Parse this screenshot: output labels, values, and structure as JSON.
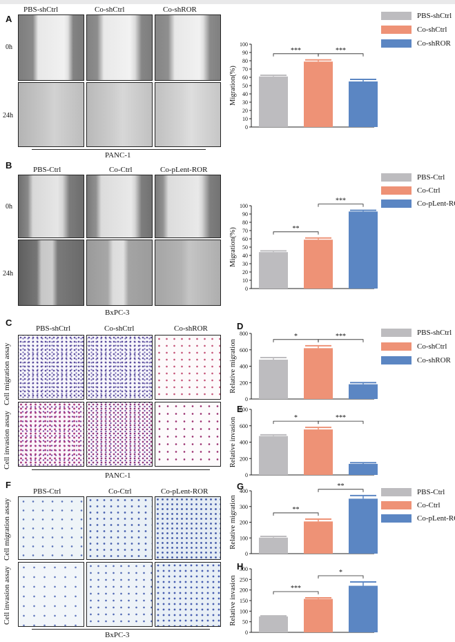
{
  "colors": {
    "gray": "#bdbcbf",
    "salmon": "#ee9276",
    "blue": "#5b86c3"
  },
  "panels": {
    "A": "A",
    "B": "B",
    "C": "C",
    "D": "D",
    "E": "E",
    "F": "F",
    "G": "G",
    "H": "H"
  },
  "panelA": {
    "cols": [
      "PBS-shCtrl",
      "Co-shCtrl",
      "Co-shROR"
    ],
    "rows": [
      "0h",
      "24h"
    ],
    "cell_line": "PANC-1"
  },
  "panelB": {
    "cols": [
      "PBS-Ctrl",
      "Co-Ctrl",
      "Co-pLent-ROR"
    ],
    "rows": [
      "0h",
      "24h"
    ],
    "cell_line": "BxPC-3"
  },
  "panelC": {
    "cols": [
      "PBS-shCtrl",
      "Co-shCtrl",
      "Co-shROR"
    ],
    "rows": [
      "Cell migration assay",
      "Cell invasion assay"
    ],
    "cell_line": "PANC-1"
  },
  "panelF": {
    "cols": [
      "PBS-Ctrl",
      "Co-Ctrl",
      "Co-pLent-ROR"
    ],
    "rows": [
      "Cell migration assay",
      "Cell invasion assay"
    ],
    "cell_line": "BxPC-3"
  },
  "legend1": [
    "PBS-shCtrl",
    "Co-shCtrl",
    "Co-shROR"
  ],
  "legend2": [
    "PBS-Ctrl",
    "Co-Ctrl",
    "Co-pLent-ROR"
  ],
  "legend3": [
    "PBS-shCtrl",
    "Co-shCtrl",
    "Co-shROR"
  ],
  "legend4": [
    "PBS-Ctrl",
    "Co-Ctrl",
    "Co-pLent-ROR"
  ],
  "chart_data": [
    {
      "id": "A",
      "type": "bar",
      "categories": [
        "PBS-shCtrl",
        "Co-shCtrl",
        "Co-shROR"
      ],
      "values": [
        61,
        79,
        55
      ],
      "errors": [
        1.5,
        2,
        2.5
      ],
      "ylabel": "Migration(%)",
      "ylim": [
        0,
        100
      ],
      "yticks": [
        0,
        10,
        20,
        30,
        40,
        50,
        60,
        70,
        80,
        90,
        100
      ],
      "sig": [
        {
          "from": 0,
          "to": 1,
          "label": "***"
        },
        {
          "from": 1,
          "to": 2,
          "label": "***"
        }
      ]
    },
    {
      "id": "B",
      "type": "bar",
      "categories": [
        "PBS-Ctrl",
        "Co-Ctrl",
        "Co-pLent-ROR"
      ],
      "values": [
        44,
        59,
        93
      ],
      "errors": [
        1.5,
        2,
        1.5
      ],
      "ylabel": "Migration(%)",
      "ylim": [
        0,
        100
      ],
      "yticks": [
        0,
        10,
        20,
        30,
        40,
        50,
        60,
        70,
        80,
        90,
        100
      ],
      "sig": [
        {
          "from": 0,
          "to": 1,
          "label": "**"
        },
        {
          "from": 1,
          "to": 2,
          "label": "***"
        }
      ]
    },
    {
      "id": "D",
      "type": "bar",
      "categories": [
        "PBS-shCtrl",
        "Co-shCtrl",
        "Co-shROR"
      ],
      "values": [
        480,
        620,
        180
      ],
      "errors": [
        25,
        30,
        20
      ],
      "ylabel": "Relative migration",
      "ylim": [
        0,
        800
      ],
      "yticks": [
        0,
        200,
        400,
        600,
        800
      ],
      "sig": [
        {
          "from": 0,
          "to": 1,
          "label": "*"
        },
        {
          "from": 1,
          "to": 2,
          "label": "***"
        }
      ]
    },
    {
      "id": "E",
      "type": "bar",
      "categories": [
        "PBS-shCtrl",
        "Co-shCtrl",
        "Co-shROR"
      ],
      "values": [
        475,
        555,
        135
      ],
      "errors": [
        15,
        25,
        15
      ],
      "ylabel": "Relative invasion",
      "ylim": [
        0,
        800
      ],
      "yticks": [
        0,
        200,
        400,
        600,
        800
      ],
      "sig": [
        {
          "from": 0,
          "to": 1,
          "label": "*"
        },
        {
          "from": 1,
          "to": 2,
          "label": "***"
        }
      ]
    },
    {
      "id": "G",
      "type": "bar",
      "categories": [
        "PBS-Ctrl",
        "Co-Ctrl",
        "Co-pLent-ROR"
      ],
      "values": [
        102,
        205,
        350
      ],
      "errors": [
        8,
        15,
        20
      ],
      "ylabel": "Relative migration",
      "ylim": [
        0,
        400
      ],
      "yticks": [
        0,
        100,
        200,
        300,
        400
      ],
      "sig": [
        {
          "from": 0,
          "to": 1,
          "label": "**"
        },
        {
          "from": 1,
          "to": 2,
          "label": "**"
        }
      ]
    },
    {
      "id": "H",
      "type": "bar",
      "categories": [
        "PBS-Ctrl",
        "Co-Ctrl",
        "Co-pLent-ROR"
      ],
      "values": [
        75,
        158,
        220
      ],
      "errors": [
        3,
        5,
        18
      ],
      "ylabel": "Relative invasion",
      "ylim": [
        0,
        300
      ],
      "yticks": [
        0,
        50,
        100,
        150,
        200,
        250,
        300
      ],
      "sig": [
        {
          "from": 0,
          "to": 1,
          "label": "***"
        },
        {
          "from": 1,
          "to": 2,
          "label": "*"
        }
      ]
    }
  ]
}
